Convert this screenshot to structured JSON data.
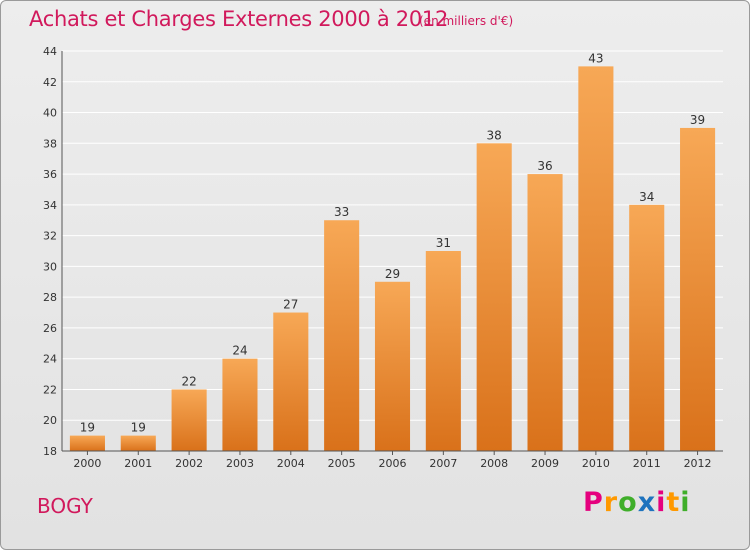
{
  "header": {
    "title": "Achats et Charges Externes 2000 à 2012",
    "subtitle": "(en milliers d'€)"
  },
  "footer": {
    "commune": "BOGY",
    "logo": "Proxiti",
    "logo_colors": [
      "#e5007e",
      "#ff9900",
      "#3fae2a",
      "#1e73be",
      "#e5007e",
      "#ff9900",
      "#3fae2a"
    ]
  },
  "colors": {
    "bar_top": "#f7a856",
    "bar_bottom": "#d9711a",
    "accent": "#d1195c",
    "grid": "#ffffff"
  },
  "chart_data": {
    "type": "bar",
    "title": "Achats et Charges Externes 2000 à 2012",
    "subtitle": "(en milliers d'€)",
    "categories": [
      "2000",
      "2001",
      "2002",
      "2003",
      "2004",
      "2005",
      "2006",
      "2007",
      "2008",
      "2009",
      "2010",
      "2011",
      "2012"
    ],
    "values": [
      19,
      19,
      22,
      24,
      27,
      33,
      29,
      31,
      38,
      36,
      43,
      34,
      39
    ],
    "ylim": [
      18,
      44
    ],
    "yticks": [
      18,
      20,
      22,
      24,
      26,
      28,
      30,
      32,
      34,
      36,
      38,
      40,
      42,
      44
    ],
    "grid": true,
    "data_labels": true
  }
}
